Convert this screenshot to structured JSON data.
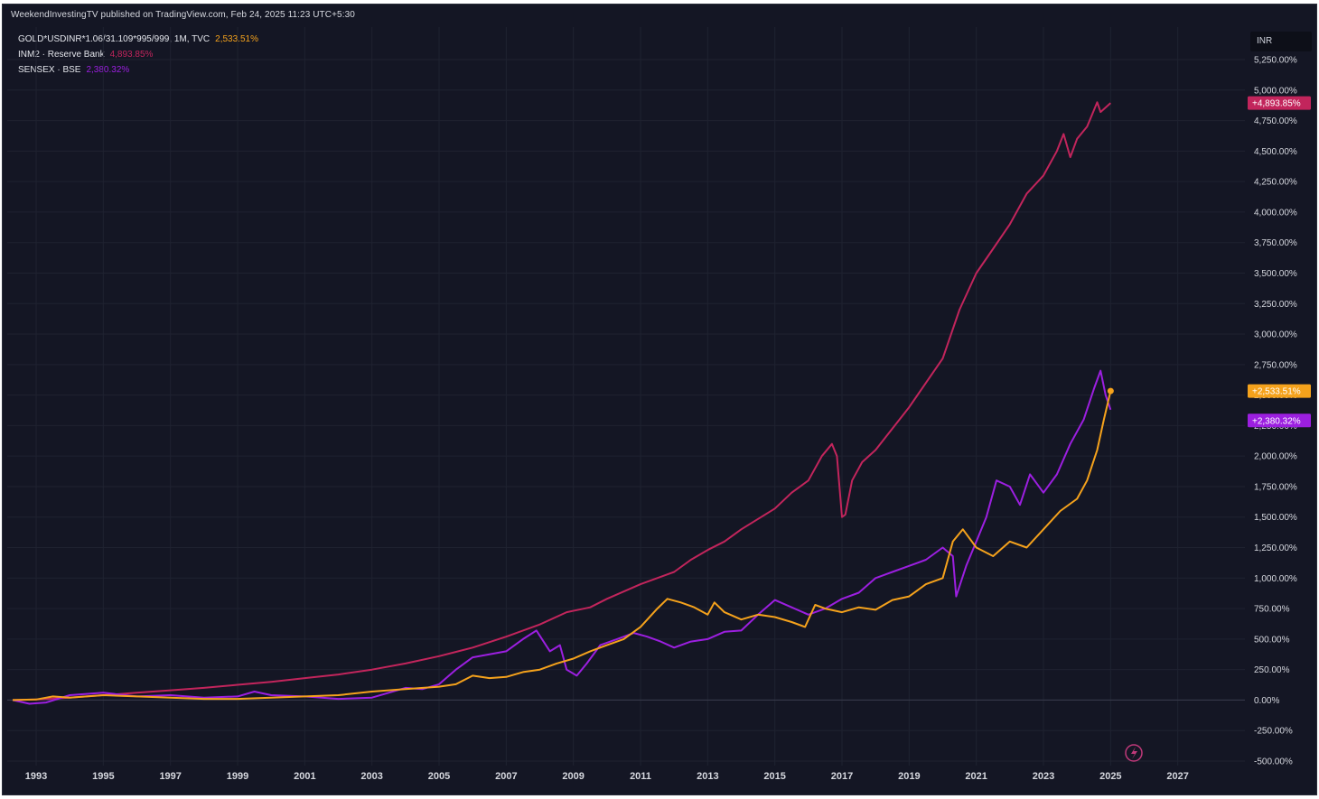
{
  "header": {
    "published": "WeekendInvestingTV published on TradingView.com, Feb 24, 2025 11:23 UTC+5:30",
    "currency": "INR"
  },
  "legend": [
    {
      "label": "GOLD*USDINR*1.06/31.109*995/999, 1M, TVC",
      "value": "2,533.51%",
      "color": "#f5a21c"
    },
    {
      "label": "INM2 · Reserve Bank",
      "value": "4,893.85%",
      "color": "#c2255c"
    },
    {
      "label": "SENSEX · BSE",
      "value": "2,380.32%",
      "color": "#9c1fe0"
    }
  ],
  "chart_data": {
    "type": "line",
    "title": "",
    "xlabel": "",
    "ylabel": "",
    "x_unit": "year",
    "xlim": [
      1992.3,
      2029.0
    ],
    "ylim": [
      -500,
      5250
    ],
    "x_ticks": [
      "1993",
      "1995",
      "1997",
      "1999",
      "2001",
      "2003",
      "2005",
      "2007",
      "2009",
      "2011",
      "2013",
      "2015",
      "2017",
      "2019",
      "2021",
      "2023",
      "2025",
      "2027"
    ],
    "y_ticks": [
      5250,
      5000,
      4750,
      4500,
      4250,
      4000,
      3750,
      3500,
      3250,
      3000,
      2750,
      2500,
      2250,
      2000,
      1750,
      1500,
      1250,
      1000,
      750,
      500,
      250,
      0,
      -250,
      -500
    ],
    "y_tick_labels": [
      "5,250.00%",
      "5,000.00%",
      "4,750.00%",
      "4,500.00%",
      "4,250.00%",
      "4,000.00%",
      "3,750.00%",
      "3,500.00%",
      "3,250.00%",
      "3,000.00%",
      "2,750.00%",
      "2,500.00%",
      "2,250.00%",
      "2,000.00%",
      "1,750.00%",
      "1,500.00%",
      "1,250.00%",
      "1,000.00%",
      "750.00%",
      "500.00%",
      "250.00%",
      "0.00%",
      "-250.00%",
      "-500.00%"
    ],
    "grid": true,
    "legend_position": "top-left",
    "series": [
      {
        "name": "INM2 · Reserve Bank",
        "color": "#c2255c",
        "last_label": "+4,893.85%",
        "points": [
          [
            1992.3,
            0
          ],
          [
            1993,
            5
          ],
          [
            1994,
            20
          ],
          [
            1995,
            40
          ],
          [
            1996,
            60
          ],
          [
            1997,
            80
          ],
          [
            1998,
            100
          ],
          [
            1999,
            125
          ],
          [
            2000,
            150
          ],
          [
            2001,
            180
          ],
          [
            2002,
            210
          ],
          [
            2003,
            250
          ],
          [
            2004,
            300
          ],
          [
            2005,
            360
          ],
          [
            2006,
            430
          ],
          [
            2007,
            520
          ],
          [
            2008,
            620
          ],
          [
            2008.8,
            720
          ],
          [
            2009.5,
            760
          ],
          [
            2010,
            830
          ],
          [
            2011,
            950
          ],
          [
            2012,
            1050
          ],
          [
            2012.5,
            1150
          ],
          [
            2013,
            1230
          ],
          [
            2013.5,
            1300
          ],
          [
            2014,
            1400
          ],
          [
            2015,
            1570
          ],
          [
            2015.5,
            1700
          ],
          [
            2016,
            1800
          ],
          [
            2016.4,
            2000
          ],
          [
            2016.7,
            2100
          ],
          [
            2016.85,
            2000
          ],
          [
            2017.0,
            1500
          ],
          [
            2017.1,
            1520
          ],
          [
            2017.3,
            1800
          ],
          [
            2017.6,
            1950
          ],
          [
            2018,
            2050
          ],
          [
            2019,
            2400
          ],
          [
            2019.5,
            2600
          ],
          [
            2020,
            2800
          ],
          [
            2020.5,
            3200
          ],
          [
            2021,
            3500
          ],
          [
            2021.5,
            3700
          ],
          [
            2022,
            3900
          ],
          [
            2022.5,
            4150
          ],
          [
            2023,
            4300
          ],
          [
            2023.4,
            4500
          ],
          [
            2023.6,
            4640
          ],
          [
            2023.8,
            4450
          ],
          [
            2024,
            4600
          ],
          [
            2024.3,
            4700
          ],
          [
            2024.6,
            4900
          ],
          [
            2024.7,
            4820
          ],
          [
            2025.0,
            4893.85
          ]
        ]
      },
      {
        "name": "SENSEX · BSE",
        "color": "#9c1fe0",
        "last_label": "+2,380.32%",
        "points": [
          [
            1992.3,
            0
          ],
          [
            1992.8,
            -30
          ],
          [
            1993.3,
            -20
          ],
          [
            1994,
            40
          ],
          [
            1995,
            60
          ],
          [
            1996,
            30
          ],
          [
            1997,
            40
          ],
          [
            1998,
            20
          ],
          [
            1999,
            30
          ],
          [
            1999.5,
            70
          ],
          [
            2000,
            40
          ],
          [
            2001,
            30
          ],
          [
            2002,
            10
          ],
          [
            2003,
            20
          ],
          [
            2003.5,
            60
          ],
          [
            2004,
            100
          ],
          [
            2004.5,
            90
          ],
          [
            2005,
            130
          ],
          [
            2005.5,
            250
          ],
          [
            2006,
            350
          ],
          [
            2007,
            400
          ],
          [
            2007.5,
            500
          ],
          [
            2007.9,
            570
          ],
          [
            2008.3,
            400
          ],
          [
            2008.6,
            450
          ],
          [
            2008.8,
            250
          ],
          [
            2009.1,
            200
          ],
          [
            2009.4,
            300
          ],
          [
            2009.8,
            450
          ],
          [
            2010.3,
            500
          ],
          [
            2010.8,
            550
          ],
          [
            2011.2,
            520
          ],
          [
            2011.6,
            480
          ],
          [
            2012,
            430
          ],
          [
            2012.5,
            480
          ],
          [
            2013,
            500
          ],
          [
            2013.5,
            560
          ],
          [
            2014,
            570
          ],
          [
            2014.5,
            700
          ],
          [
            2015,
            820
          ],
          [
            2015.5,
            760
          ],
          [
            2016,
            700
          ],
          [
            2016.5,
            750
          ],
          [
            2017,
            830
          ],
          [
            2017.5,
            880
          ],
          [
            2018,
            1000
          ],
          [
            2018.5,
            1050
          ],
          [
            2019,
            1100
          ],
          [
            2019.5,
            1150
          ],
          [
            2020,
            1250
          ],
          [
            2020.3,
            1180
          ],
          [
            2020.4,
            850
          ],
          [
            2020.7,
            1100
          ],
          [
            2021,
            1300
          ],
          [
            2021.3,
            1500
          ],
          [
            2021.6,
            1800
          ],
          [
            2022,
            1750
          ],
          [
            2022.3,
            1600
          ],
          [
            2022.6,
            1850
          ],
          [
            2023,
            1700
          ],
          [
            2023.4,
            1850
          ],
          [
            2023.8,
            2100
          ],
          [
            2024.2,
            2300
          ],
          [
            2024.5,
            2550
          ],
          [
            2024.7,
            2700
          ],
          [
            2024.85,
            2500
          ],
          [
            2025.0,
            2380.32
          ]
        ]
      },
      {
        "name": "GOLD*USDINR*1.06/31.109*995/999, 1M, TVC",
        "color": "#f5a21c",
        "last_label": "+2,533.51%",
        "points": [
          [
            1992.3,
            0
          ],
          [
            1993,
            5
          ],
          [
            1993.5,
            30
          ],
          [
            1994,
            20
          ],
          [
            1995,
            40
          ],
          [
            1996,
            30
          ],
          [
            1997,
            20
          ],
          [
            1998,
            10
          ],
          [
            1999,
            10
          ],
          [
            2000,
            20
          ],
          [
            2001,
            30
          ],
          [
            2002,
            40
          ],
          [
            2003,
            70
          ],
          [
            2004,
            90
          ],
          [
            2005,
            110
          ],
          [
            2005.5,
            130
          ],
          [
            2006,
            200
          ],
          [
            2006.5,
            180
          ],
          [
            2007,
            190
          ],
          [
            2007.5,
            230
          ],
          [
            2008,
            250
          ],
          [
            2008.5,
            300
          ],
          [
            2009,
            340
          ],
          [
            2009.5,
            400
          ],
          [
            2010,
            450
          ],
          [
            2010.5,
            500
          ],
          [
            2011,
            600
          ],
          [
            2011.5,
            750
          ],
          [
            2011.8,
            830
          ],
          [
            2012.2,
            800
          ],
          [
            2012.6,
            760
          ],
          [
            2013,
            700
          ],
          [
            2013.2,
            800
          ],
          [
            2013.5,
            720
          ],
          [
            2014,
            660
          ],
          [
            2014.5,
            700
          ],
          [
            2015,
            680
          ],
          [
            2015.5,
            640
          ],
          [
            2015.9,
            600
          ],
          [
            2016.2,
            780
          ],
          [
            2016.5,
            750
          ],
          [
            2017,
            720
          ],
          [
            2017.5,
            760
          ],
          [
            2018,
            740
          ],
          [
            2018.5,
            820
          ],
          [
            2019,
            850
          ],
          [
            2019.5,
            950
          ],
          [
            2020,
            1000
          ],
          [
            2020.3,
            1300
          ],
          [
            2020.6,
            1400
          ],
          [
            2021,
            1250
          ],
          [
            2021.5,
            1180
          ],
          [
            2022,
            1300
          ],
          [
            2022.5,
            1250
          ],
          [
            2023,
            1400
          ],
          [
            2023.5,
            1550
          ],
          [
            2024,
            1650
          ],
          [
            2024.3,
            1800
          ],
          [
            2024.6,
            2050
          ],
          [
            2024.8,
            2300
          ],
          [
            2025.0,
            2533.51
          ]
        ]
      }
    ]
  }
}
